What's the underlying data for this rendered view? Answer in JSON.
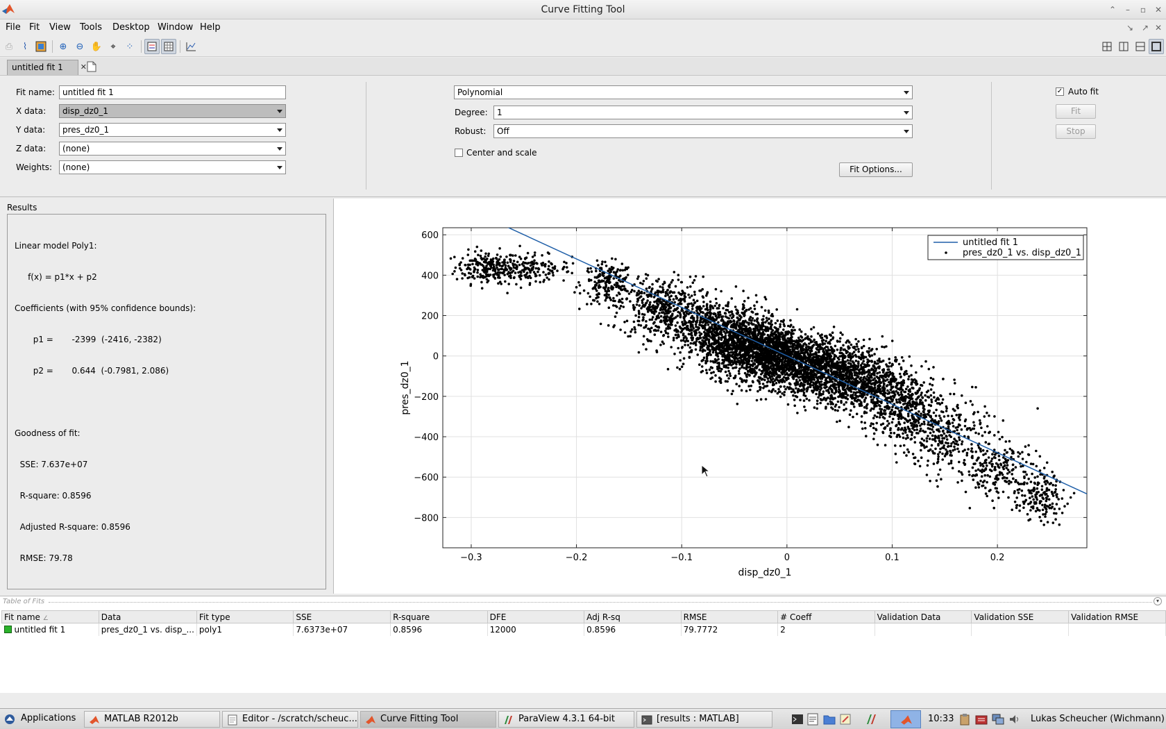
{
  "window": {
    "title": "Curve Fitting Tool"
  },
  "menu": {
    "items": [
      "File",
      "Fit",
      "View",
      "Tools",
      "Desktop",
      "Window",
      "Help"
    ]
  },
  "tab": {
    "label": "untitled fit 1"
  },
  "config": {
    "fit_name_label": "Fit name:",
    "fit_name_value": "untitled fit 1",
    "x_label": "X data:",
    "x_value": "disp_dz0_1",
    "y_label": "Y data:",
    "y_value": "pres_dz0_1",
    "z_label": "Z data:",
    "z_value": "(none)",
    "weights_label": "Weights:",
    "weights_value": "(none)",
    "fit_type": "Polynomial",
    "degree_label": "Degree:",
    "degree_value": "1",
    "robust_label": "Robust:",
    "robust_value": "Off",
    "center_scale_label": "Center and scale",
    "center_scale_checked": false,
    "fit_options_label": "Fit Options...",
    "auto_fit_label": "Auto fit",
    "auto_fit_checked": true,
    "fit_button": "Fit",
    "stop_button": "Stop"
  },
  "results": {
    "header": "Results",
    "lines": [
      "Linear model Poly1:",
      "     f(x) = p1*x + p2",
      "Coefficients (with 95% confidence bounds):",
      "       p1 =       -2399  (-2416, -2382)",
      "       p2 =       0.644  (-0.7981, 2.086)",
      "",
      "Goodness of fit:",
      "  SSE: 7.637e+07",
      "  R-square: 0.8596",
      "  Adjusted R-square: 0.8596",
      "  RMSE: 79.78"
    ]
  },
  "chart_data": {
    "type": "scatter",
    "xlabel": "disp_dz0_1",
    "ylabel": "pres_dz0_1",
    "xlim": [
      -0.327,
      0.285
    ],
    "ylim": [
      -950,
      635
    ],
    "xticks": [
      -0.3,
      -0.2,
      -0.1,
      0,
      0.1,
      0.2
    ],
    "xtick_labels": [
      "−0.3",
      "−0.2",
      "−0.1",
      "0",
      "0.1",
      "0.2"
    ],
    "yticks": [
      600,
      400,
      200,
      0,
      -200,
      -400,
      -600,
      -800
    ],
    "ytick_labels": [
      "600",
      "400",
      "200",
      "0",
      "−200",
      "−400",
      "−600",
      "−800"
    ],
    "grid": true,
    "legend_position": "top-right",
    "series": [
      {
        "name": "untitled fit 1",
        "kind": "line",
        "color": "#1f5fa8",
        "p1": -2399,
        "p2": 0.644
      },
      {
        "name": "pres_dz0_1 vs. disp_dz0_1",
        "kind": "scatter",
        "color": "#000000",
        "clusters": [
          {
            "cx": -0.285,
            "cy": 440,
            "sx": 0.015,
            "sy": 40,
            "n": 200
          },
          {
            "cx": -0.245,
            "cy": 430,
            "sx": 0.02,
            "sy": 35,
            "n": 170
          },
          {
            "cx": -0.17,
            "cy": 360,
            "sx": 0.012,
            "sy": 50,
            "n": 200
          },
          {
            "cx": -0.12,
            "cy": 240,
            "sx": 0.02,
            "sy": 75,
            "n": 420
          },
          {
            "cx": -0.07,
            "cy": 140,
            "sx": 0.025,
            "sy": 70,
            "n": 600
          },
          {
            "cx": -0.03,
            "cy": 40,
            "sx": 0.025,
            "sy": 70,
            "n": 1400
          },
          {
            "cx": 0.02,
            "cy": -50,
            "sx": 0.03,
            "sy": 70,
            "n": 1400
          },
          {
            "cx": 0.07,
            "cy": -140,
            "sx": 0.025,
            "sy": 65,
            "n": 700
          },
          {
            "cx": 0.11,
            "cy": -250,
            "sx": 0.02,
            "sy": 80,
            "n": 420
          },
          {
            "cx": 0.15,
            "cy": -400,
            "sx": 0.02,
            "sy": 90,
            "n": 300
          },
          {
            "cx": 0.2,
            "cy": -560,
            "sx": 0.02,
            "sy": 70,
            "n": 220
          },
          {
            "cx": 0.24,
            "cy": -700,
            "sx": 0.012,
            "sy": 60,
            "n": 160
          }
        ]
      }
    ]
  },
  "table_of_fits": {
    "caption": "Table of Fits",
    "columns": [
      "Fit name",
      "Data",
      "Fit type",
      "SSE",
      "R-square",
      "DFE",
      "Adj R-sq",
      "RMSE",
      "# Coeff",
      "Validation Data",
      "Validation SSE",
      "Validation RMSE"
    ],
    "rows": [
      [
        "untitled fit 1",
        "pres_dz0_1 vs. disp_...",
        "poly1",
        "7.6373e+07",
        "0.8596",
        "12000",
        "0.8596",
        "79.7772",
        "2",
        "",
        "",
        ""
      ]
    ]
  },
  "taskbar": {
    "applications": "Applications",
    "tasks": [
      "MATLAB R2012b",
      "Editor - /scratch/scheuc...",
      "Curve Fitting Tool",
      "ParaView 4.3.1 64-bit",
      "[results : MATLAB]"
    ],
    "clock": "10:33",
    "user": "Lukas Scheucher (Wichmann)"
  }
}
